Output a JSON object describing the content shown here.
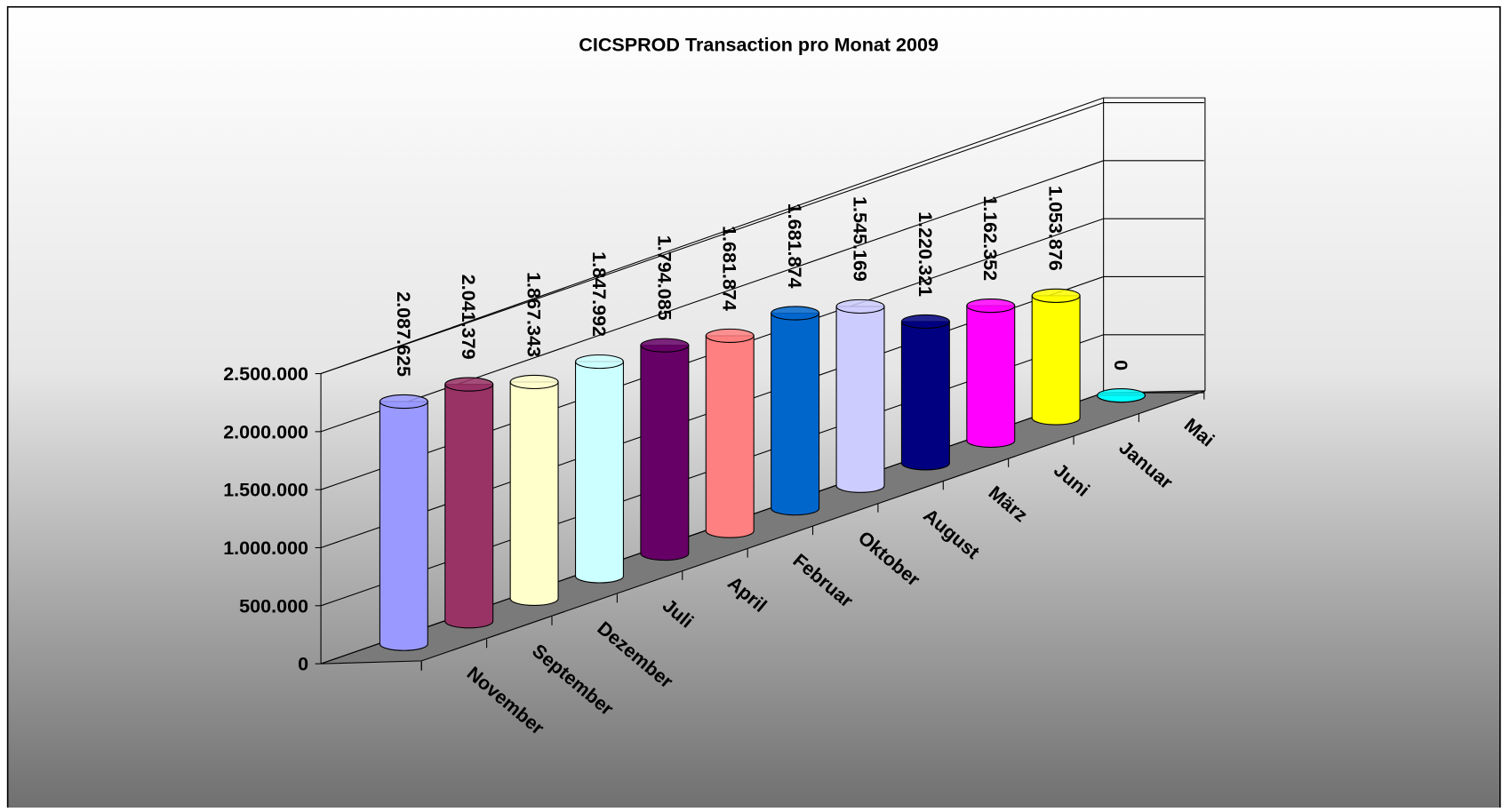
{
  "chart_data": {
    "type": "bar3d",
    "title": "CICSPROD Transaction pro Monat 2009",
    "categories": [
      "November",
      "September",
      "Dezember",
      "Juli",
      "April",
      "Februar",
      "Oktober",
      "August",
      "März",
      "Juni",
      "Januar",
      "Mai"
    ],
    "values": [
      2087625,
      2041379,
      1867343,
      1847992,
      1794085,
      1681874,
      1681874,
      1545169,
      1220321,
      1162352,
      1053876,
      0
    ],
    "value_labels": [
      "2.087.625",
      "2.041.379",
      "1.867.343",
      "1.847.992",
      "1.794.085",
      "1.681.874",
      "1.681.874",
      "1.545.169",
      "1.220.321",
      "1.162.352",
      "1.053.876",
      "0"
    ],
    "colors": [
      "#9999ff",
      "#993366",
      "#ffffcc",
      "#ccffff",
      "#660066",
      "#ff8080",
      "#0066cc",
      "#ccccff",
      "#000080",
      "#ff00ff",
      "#ffff00",
      "#00ffff"
    ],
    "ylim": [
      0,
      2500000
    ],
    "yticks": [
      0,
      {
        "value": 500000,
        "label": "500.000"
      },
      {
        "value": 1000000,
        "label": "1.000.000"
      },
      {
        "value": 1500000,
        "label": "1.500.000"
      },
      {
        "value": 2000000,
        "label": "2.000.000"
      },
      {
        "value": 2500000,
        "label": "2.500.000"
      }
    ],
    "grid": true
  }
}
